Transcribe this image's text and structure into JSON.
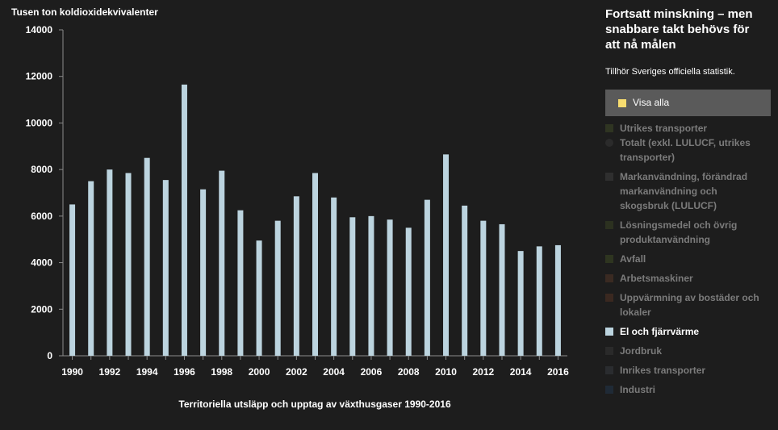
{
  "chart_data": {
    "type": "bar",
    "title": "Territoriella utsläpp och upptag av växthusgaser 1990-2016",
    "ylabel": "Tusen ton koldioxidekvivalenter",
    "xlabel": "Territoriella utsläpp och upptag av växthusgaser 1990-2016",
    "ylim": [
      0,
      14000
    ],
    "yticks": [
      0,
      2000,
      4000,
      6000,
      8000,
      10000,
      12000,
      14000
    ],
    "ytick_labels": [
      "0",
      "2000",
      "4000",
      "6000",
      "8000",
      "10000",
      "12000",
      "14000"
    ],
    "categories": [
      "1990",
      "1991",
      "1992",
      "1993",
      "1994",
      "1995",
      "1996",
      "1997",
      "1998",
      "1999",
      "2000",
      "2001",
      "2002",
      "2003",
      "2004",
      "2005",
      "2006",
      "2007",
      "2008",
      "2009",
      "2010",
      "2011",
      "2012",
      "2013",
      "2014",
      "2015",
      "2016"
    ],
    "xtick_labels": [
      "1990",
      "",
      "1992",
      "",
      "1994",
      "",
      "1996",
      "",
      "1998",
      "",
      "2000",
      "",
      "2002",
      "",
      "2004",
      "",
      "2006",
      "",
      "2008",
      "",
      "2010",
      "",
      "2012",
      "",
      "2014",
      "",
      "2016"
    ],
    "series": [
      {
        "name": "El och fjärrvärme",
        "color": "#bcd4df",
        "values": [
          6500,
          7500,
          8000,
          7850,
          8500,
          7550,
          11650,
          7150,
          7950,
          6250,
          4950,
          5800,
          6850,
          7850,
          6800,
          5950,
          6000,
          5850,
          5500,
          6700,
          8650,
          6450,
          5800,
          5650,
          4500,
          4700,
          4750
        ]
      }
    ],
    "grid": false
  },
  "sidebar": {
    "title": "Fortsatt minskning – men snabbare takt behövs för att nå målen",
    "subtitle": "Tillhör Sveriges officiella statistik.",
    "show_all": {
      "label": "Visa alla",
      "color": "#f7dc6f"
    },
    "legend": [
      {
        "label": "Utrikes transporter",
        "color": "#2f3522",
        "shape": "square",
        "active": false
      },
      {
        "label": "Totalt (exkl. LULUCF, utrikes transporter)",
        "color": "#2b2b2b",
        "shape": "circle",
        "active": false
      },
      {
        "label": "Markanvändning, förändrad markanvändning och skogsbruk (LULUCF)",
        "color": "#2f2f2f",
        "shape": "square",
        "active": false
      },
      {
        "label": "Lösningsmedel och övrig produktanvändning",
        "color": "#2c3120",
        "shape": "square",
        "active": false
      },
      {
        "label": "Avfall",
        "color": "#2e3520",
        "shape": "square",
        "active": false
      },
      {
        "label": "Arbetsmaskiner",
        "color": "#3a2a22",
        "shape": "square",
        "active": false
      },
      {
        "label": "Uppvärmning av bostäder och lokaler",
        "color": "#3a2820",
        "shape": "square",
        "active": false
      },
      {
        "label": "El och fjärrvärme",
        "color": "#bcd4df",
        "shape": "square",
        "active": true
      },
      {
        "label": "Jordbruk",
        "color": "#2a2a2a",
        "shape": "square",
        "active": false
      },
      {
        "label": "Inrikes transporter",
        "color": "#2a2c2f",
        "shape": "square",
        "active": false
      },
      {
        "label": "Industri",
        "color": "#1f2a36",
        "shape": "square",
        "active": false
      }
    ]
  }
}
